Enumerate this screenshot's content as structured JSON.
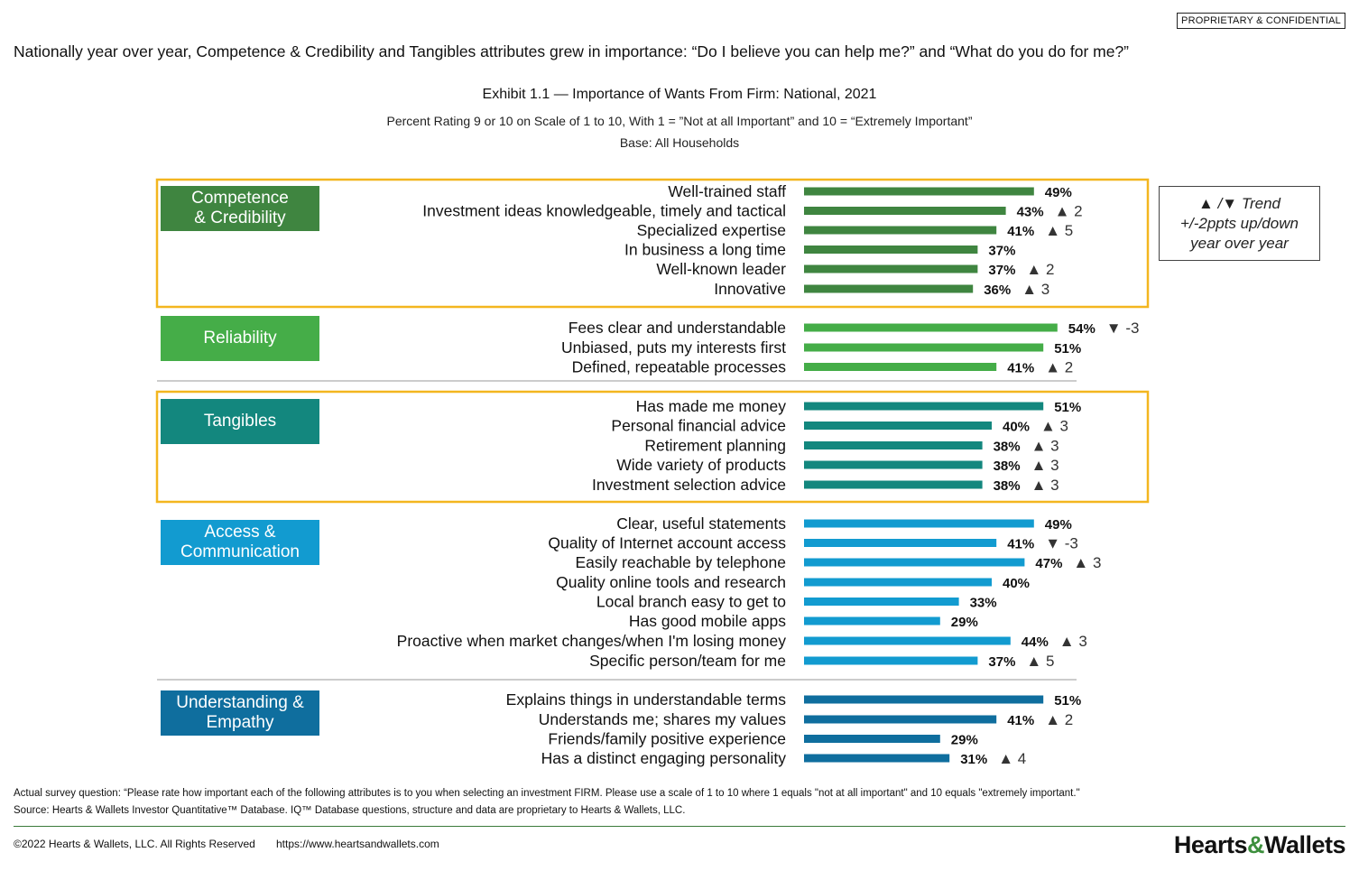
{
  "header": {
    "confidential_label": "PROPRIETARY & CONFIDENTIAL",
    "headline": "Nationally year over year, Competence & Credibility and Tangibles attributes grew in importance: “Do I believe you can help me?” and “What do you do for me?”"
  },
  "chart_data": {
    "type": "bar",
    "orientation": "horizontal",
    "title": "Exhibit 1.1 — Importance of Wants From Firm: National, 2021",
    "subtitle": "Percent Rating 9 or 10 on Scale of 1 to 10, With 1 = ”Not at all Important” and 10 = “Extremely Important”",
    "base": "Base: All Households",
    "legend": {
      "line1": "▲ /▼ Trend",
      "line2": "+/-2ppts up/down",
      "line3": "year over year"
    },
    "groups": [
      {
        "name": "Competence & Credibility",
        "name_lines": [
          "Competence",
          "& Credibility"
        ],
        "color": "#3f8540",
        "highlighted": true,
        "items": [
          {
            "label": "Well-trained staff",
            "value": 49,
            "value_label": "49%",
            "trend": ""
          },
          {
            "label": "Investment ideas knowledgeable, timely and tactical",
            "value": 43,
            "value_label": "43%",
            "trend": "▲ 2"
          },
          {
            "label": "Specialized expertise",
            "value": 41,
            "value_label": "41%",
            "trend": "▲ 5"
          },
          {
            "label": "In business a long time",
            "value": 37,
            "value_label": "37%",
            "trend": ""
          },
          {
            "label": "Well-known leader",
            "value": 37,
            "value_label": "37%",
            "trend": "▲ 2"
          },
          {
            "label": "Innovative",
            "value": 36,
            "value_label": "36%",
            "trend": "▲ 3"
          }
        ]
      },
      {
        "name": "Reliability",
        "name_lines": [
          "Reliability"
        ],
        "color": "#45ad48",
        "highlighted": false,
        "items": [
          {
            "label": "Fees clear and understandable",
            "value": 54,
            "value_label": "54%",
            "trend": "▼ -3"
          },
          {
            "label": "Unbiased, puts my interests first",
            "value": 51,
            "value_label": "51%",
            "trend": ""
          },
          {
            "label": "Defined, repeatable processes",
            "value": 41,
            "value_label": "41%",
            "trend": "▲ 2"
          }
        ]
      },
      {
        "name": "Tangibles",
        "name_lines": [
          "Tangibles"
        ],
        "color": "#13877e",
        "highlighted": true,
        "items": [
          {
            "label": "Has made me money",
            "value": 51,
            "value_label": "51%",
            "trend": ""
          },
          {
            "label": "Personal financial advice",
            "value": 40,
            "value_label": "40%",
            "trend": "▲ 3"
          },
          {
            "label": "Retirement planning",
            "value": 38,
            "value_label": "38%",
            "trend": "▲ 3"
          },
          {
            "label": "Wide variety of products",
            "value": 38,
            "value_label": "38%",
            "trend": "▲ 3"
          },
          {
            "label": "Investment selection advice",
            "value": 38,
            "value_label": "38%",
            "trend": "▲ 3"
          }
        ]
      },
      {
        "name": "Access & Communication",
        "name_lines": [
          "Access &",
          "Communication"
        ],
        "color": "#129bd0",
        "highlighted": false,
        "items": [
          {
            "label": "Clear, useful statements",
            "value": 49,
            "value_label": "49%",
            "trend": ""
          },
          {
            "label": "Quality of Internet account access",
            "value": 41,
            "value_label": "41%",
            "trend": "▼ -3"
          },
          {
            "label": "Easily reachable by telephone",
            "value": 47,
            "value_label": "47%",
            "trend": "▲ 3"
          },
          {
            "label": "Quality online tools and research",
            "value": 40,
            "value_label": "40%",
            "trend": ""
          },
          {
            "label": "Local branch easy to get to",
            "value": 33,
            "value_label": "33%",
            "trend": ""
          },
          {
            "label": "Has good mobile apps",
            "value": 29,
            "value_label": "29%",
            "trend": ""
          },
          {
            "label": "Proactive when market changes/when I'm losing money",
            "value": 44,
            "value_label": "44%",
            "trend": "▲ 3"
          },
          {
            "label": "Specific person/team for me",
            "value": 37,
            "value_label": "37%",
            "trend": "▲ 5"
          }
        ]
      },
      {
        "name": "Understanding & Empathy",
        "name_lines": [
          "Understanding &",
          "Empathy"
        ],
        "color": "#0f6e9e",
        "highlighted": false,
        "items": [
          {
            "label": "Explains things in understandable terms",
            "value": 51,
            "value_label": "51%",
            "trend": ""
          },
          {
            "label": "Understands me; shares my values",
            "value": 41,
            "value_label": "41%",
            "trend": "▲ 2"
          },
          {
            "label": "Friends/family positive experience",
            "value": 29,
            "value_label": "29%",
            "trend": ""
          },
          {
            "label": "Has a distinct engaging personality",
            "value": 31,
            "value_label": "31%",
            "trend": "▲ 4"
          }
        ]
      }
    ],
    "highlight_color": "#f3b61f"
  },
  "footer": {
    "note": "Actual survey question: “Please rate how important each of the following attributes is to you when selecting an investment FIRM. Please use a scale of 1 to 10 where 1 equals \"not at all important\" and 10 equals \"extremely important.\"",
    "source": "Source: Hearts & Wallets Investor Quantitative™ Database. IQ™ Database questions, structure and data are proprietary to Hearts & Wallets, LLC.",
    "copyright": "©2022 Hearts & Wallets, LLC. All Rights Reserved",
    "url": "https://www.heartsandwallets.com",
    "brand": {
      "part1": "Hearts",
      "amp": "&",
      "part2": "Wallets"
    }
  }
}
